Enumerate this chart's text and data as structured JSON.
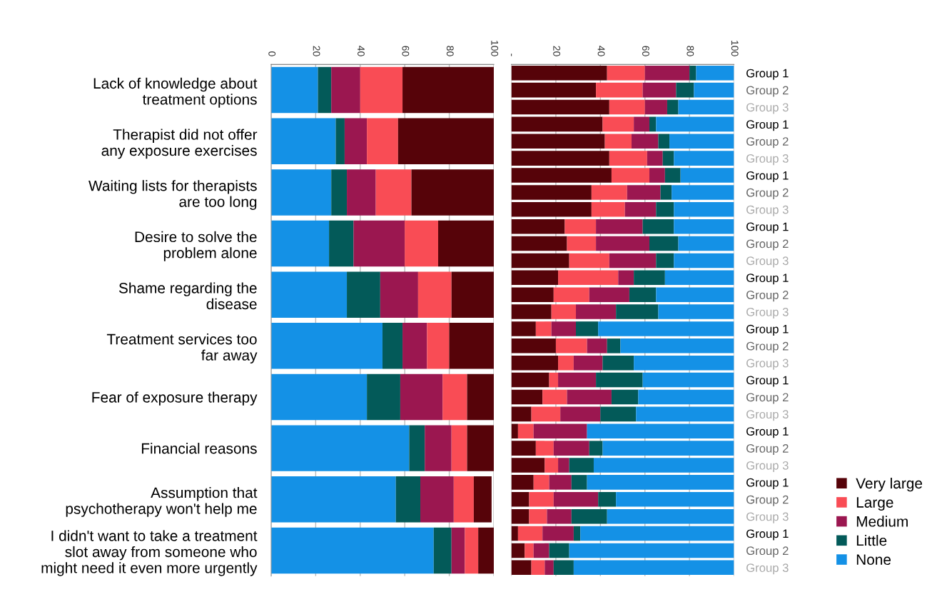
{
  "chart_data": [
    {
      "type": "bar",
      "orientation": "horizontal",
      "stacked": true,
      "categories": [
        "Lack of knowledge about\ntreatment options",
        "Therapist did not offer\nany exposure exercises",
        "Waiting lists for therapists\nare too long",
        "Desire to solve the\nproblem alone",
        "Shame regarding the\ndisease",
        "Treatment services too\nfar away",
        "Fear of exposure therapy",
        "Financial reasons",
        "Assumption that\npsychotherapy won't help me",
        "I didn't want to take a treatment\nslot away from someone who\nmight need it even more urgently"
      ],
      "series": [
        {
          "color": "#1491e6",
          "values": [
            21,
            29,
            27,
            26,
            34,
            50,
            43,
            62,
            56,
            73
          ]
        },
        {
          "color": "#035a59",
          "values": [
            6,
            4,
            7,
            11,
            15,
            9,
            15,
            7,
            11,
            8
          ]
        },
        {
          "color": "#9b1750",
          "values": [
            13,
            10,
            13,
            23,
            17,
            11,
            19,
            12,
            15,
            6
          ]
        },
        {
          "color": "#f94c55",
          "values": [
            19,
            14,
            16,
            15,
            15,
            10,
            11,
            7,
            9,
            6
          ]
        },
        {
          "color": "#560309",
          "values": [
            41,
            43,
            37,
            25,
            19,
            20,
            12,
            12,
            8,
            7
          ]
        }
      ],
      "xlim": [
        0,
        100
      ],
      "xticks": [
        0,
        20,
        40,
        60,
        80,
        100
      ],
      "grid": "x",
      "legend": false
    },
    {
      "type": "bar",
      "orientation": "horizontal",
      "stacked": true,
      "categories": [
        "Group 1",
        "Group 2",
        "Group 3",
        "Group 1",
        "Group 2",
        "Group 3",
        "Group 1",
        "Group 2",
        "Group 3",
        "Group 1",
        "Group 2",
        "Group 3",
        "Group 1",
        "Group 2",
        "Group 3",
        "Group 1",
        "Group 2",
        "Group 3",
        "Group 1",
        "Group 2",
        "Group 3",
        "Group 1",
        "Group 2",
        "Group 3",
        "Group 1",
        "Group 2",
        "Group 3",
        "Group 1",
        "Group 2",
        "Group 3"
      ],
      "series": [
        {
          "name": "Very large",
          "color": "#560309",
          "values": [
            43,
            38,
            44,
            41,
            42,
            44,
            45,
            36,
            36,
            24,
            25,
            26,
            21,
            19,
            18,
            11,
            20,
            21,
            17,
            14,
            9,
            3,
            11,
            15,
            10,
            8,
            8,
            3,
            6,
            9
          ]
        },
        {
          "name": "Large",
          "color": "#f94c55",
          "values": [
            17,
            21,
            16,
            14,
            12,
            17,
            17,
            16,
            15,
            14,
            13,
            18,
            27,
            16,
            11,
            7,
            14,
            7,
            4,
            11,
            13,
            7,
            8,
            6,
            7,
            11,
            8,
            11,
            4,
            6
          ]
        },
        {
          "name": "Medium",
          "color": "#9b1750",
          "values": [
            20,
            15,
            10,
            7,
            12,
            7,
            7,
            15,
            14,
            21,
            24,
            21,
            7,
            18,
            18,
            11,
            9,
            13,
            17,
            20,
            18,
            24,
            16,
            5,
            10,
            20,
            11,
            14,
            7,
            4
          ]
        },
        {
          "name": "Little",
          "color": "#035a59",
          "values": [
            3,
            8,
            5,
            3,
            5,
            5,
            7,
            5,
            8,
            14,
            13,
            8,
            14,
            12,
            19,
            10,
            6,
            14,
            21,
            12,
            16,
            0,
            6,
            11,
            7,
            8,
            16,
            3,
            9,
            9
          ]
        },
        {
          "name": "None",
          "color": "#1491e6",
          "values": [
            17,
            18,
            25,
            35,
            29,
            27,
            24,
            28,
            27,
            27,
            25,
            27,
            31,
            35,
            34,
            61,
            51,
            45,
            41,
            43,
            44,
            66,
            59,
            63,
            66,
            53,
            57,
            69,
            74,
            72
          ]
        }
      ],
      "xlim": [
        0,
        100
      ],
      "xticks": [
        {
          "value": 0,
          "label": "-"
        },
        20,
        40,
        60,
        80,
        100
      ],
      "grid": "x",
      "legend": "right"
    }
  ]
}
